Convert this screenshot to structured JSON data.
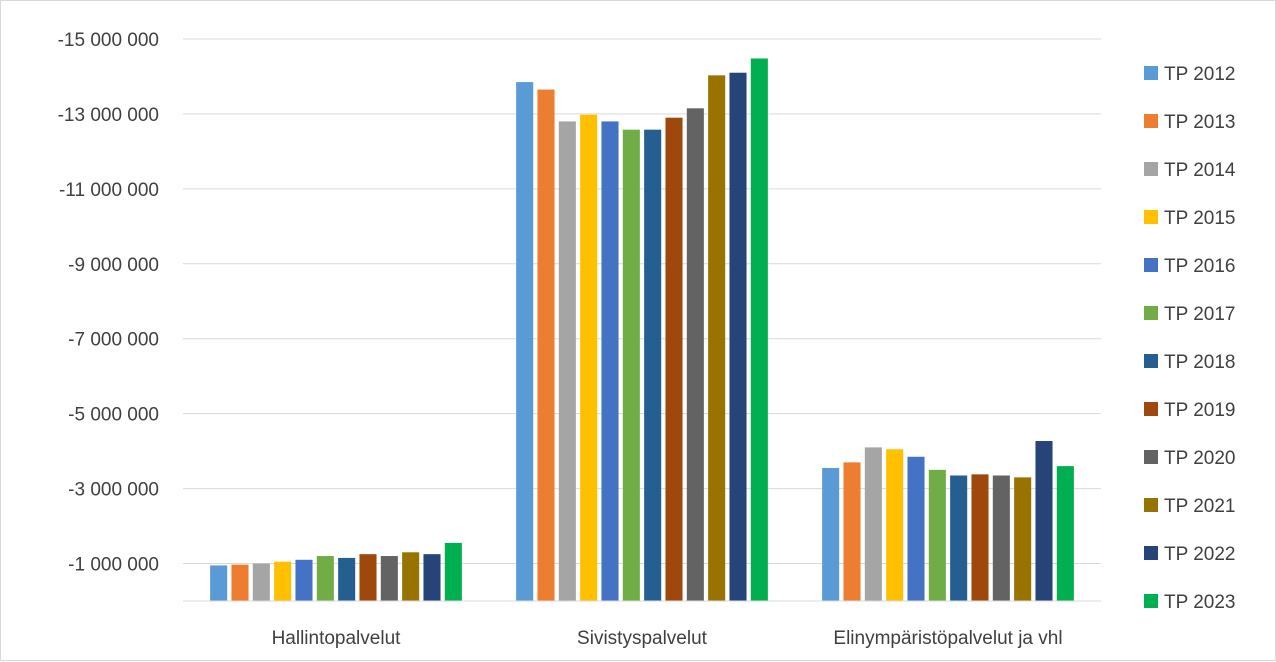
{
  "chart_data": {
    "type": "bar",
    "title": "",
    "xlabel": "",
    "ylabel": "",
    "y_reversed": true,
    "ylim": [
      0,
      -15000000
    ],
    "yticks": [
      -1000000,
      -3000000,
      -5000000,
      -7000000,
      -9000000,
      -11000000,
      -13000000,
      -15000000
    ],
    "ytick_labels": [
      "-1 000 000",
      "-3 000 000",
      "-5 000 000",
      "-7 000 000",
      "-9 000 000",
      "-11 000 000",
      "-13 000 000",
      "-15 000 000"
    ],
    "grid": true,
    "legend": "right",
    "categories": [
      "Hallintopalvelut",
      "Sivistyspalvelut",
      "Elinympäristöpalvelut ja vhl"
    ],
    "series": [
      {
        "name": "TP 2012",
        "color": "#5b9bd5",
        "values": [
          -950000,
          -13850000,
          -3550000
        ]
      },
      {
        "name": "TP 2013",
        "color": "#ed7d31",
        "values": [
          -970000,
          -13650000,
          -3700000
        ]
      },
      {
        "name": "TP 2014",
        "color": "#a5a5a5",
        "values": [
          -1000000,
          -12800000,
          -4100000
        ]
      },
      {
        "name": "TP 2015",
        "color": "#ffc000",
        "values": [
          -1050000,
          -12980000,
          -4050000
        ]
      },
      {
        "name": "TP 2016",
        "color": "#4472c4",
        "values": [
          -1100000,
          -12800000,
          -3850000
        ]
      },
      {
        "name": "TP 2017",
        "color": "#70ad47",
        "values": [
          -1200000,
          -12580000,
          -3500000
        ]
      },
      {
        "name": "TP 2018",
        "color": "#255e91",
        "values": [
          -1150000,
          -12580000,
          -3350000
        ]
      },
      {
        "name": "TP 2019",
        "color": "#9e480e",
        "values": [
          -1250000,
          -12900000,
          -3380000
        ]
      },
      {
        "name": "TP 2020",
        "color": "#636363",
        "values": [
          -1200000,
          -13150000,
          -3350000
        ]
      },
      {
        "name": "TP 2021",
        "color": "#997300",
        "values": [
          -1300000,
          -14030000,
          -3300000
        ]
      },
      {
        "name": "TP 2022",
        "color": "#264478",
        "values": [
          -1250000,
          -14100000,
          -4270000
        ]
      },
      {
        "name": "TP 2023",
        "color": "#00b050",
        "values": [
          -1550000,
          -14480000,
          -3600000
        ]
      }
    ]
  }
}
